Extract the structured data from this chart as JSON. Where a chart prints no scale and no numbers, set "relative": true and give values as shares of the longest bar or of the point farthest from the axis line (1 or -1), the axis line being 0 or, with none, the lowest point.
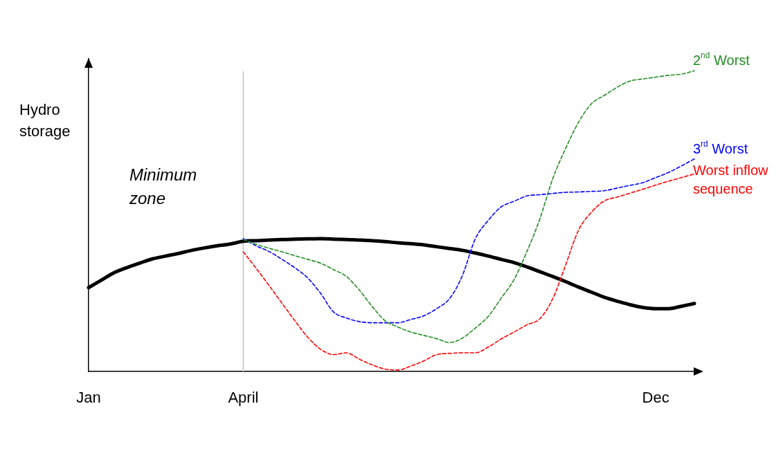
{
  "chart_data": {
    "type": "line",
    "relative": true,
    "ylabel": "Hydro storage",
    "annotations": [
      "Minimum zone"
    ],
    "categories": [
      "Jan",
      null,
      null,
      null,
      null,
      null,
      null,
      null,
      null,
      null,
      null,
      null,
      "April",
      null,
      null,
      null,
      null,
      null,
      null,
      null,
      null,
      null,
      null,
      null,
      null,
      null,
      null,
      null,
      null,
      null,
      null,
      null,
      null,
      null,
      null,
      null,
      null,
      null,
      null,
      null,
      null,
      null,
      null,
      null,
      "Dec",
      null,
      null,
      null
    ],
    "grid": false,
    "legend": false,
    "marker": "none",
    "ref_lines": [
      {
        "axis": "x",
        "value": "April",
        "color": "#c0c0c0"
      }
    ],
    "series": [
      {
        "color": "#000000",
        "line_style": "solid",
        "values": [
          0.279,
          0.304,
          0.329,
          0.346,
          0.361,
          0.375,
          0.384,
          0.393,
          0.403,
          0.411,
          0.418,
          0.424,
          0.433,
          0.435,
          0.437,
          0.439,
          0.44,
          0.441,
          0.442,
          0.44,
          0.439,
          0.437,
          0.435,
          0.432,
          0.428,
          0.425,
          0.421,
          0.415,
          0.409,
          0.403,
          0.394,
          0.384,
          0.373,
          0.362,
          0.348,
          0.332,
          0.316,
          0.299,
          0.281,
          0.264,
          0.247,
          0.234,
          0.222,
          0.213,
          0.209,
          0.209,
          0.217,
          0.226
        ]
      },
      {
        "name": "2$^{nd}$ Worst",
        "color": "#228b22",
        "line_style": "dashed",
        "values": [
          null,
          null,
          null,
          null,
          null,
          null,
          null,
          null,
          null,
          null,
          null,
          null,
          0.439,
          0.423,
          0.41,
          0.398,
          0.385,
          0.373,
          0.36,
          0.339,
          0.316,
          0.271,
          0.216,
          0.169,
          0.148,
          0.131,
          0.12,
          0.109,
          0.096,
          0.111,
          0.144,
          0.183,
          0.243,
          0.305,
          0.398,
          0.506,
          0.64,
          0.741,
          0.828,
          0.89,
          0.918,
          0.945,
          0.966,
          0.973,
          0.979,
          0.985,
          0.989,
          1
        ]
      },
      {
        "name": "3$^{rd}$ Worst",
        "color": "#0000ff",
        "line_style": "dashed",
        "values": [
          null,
          null,
          null,
          null,
          null,
          null,
          null,
          null,
          null,
          null,
          null,
          null,
          0.442,
          0.418,
          0.399,
          0.373,
          0.345,
          0.311,
          0.26,
          0.198,
          0.178,
          0.166,
          0.162,
          0.162,
          0.162,
          0.173,
          0.185,
          0.209,
          0.242,
          0.319,
          0.441,
          0.502,
          0.547,
          0.566,
          0.584,
          0.588,
          0.592,
          0.596,
          0.597,
          0.599,
          0.601,
          0.61,
          0.619,
          0.628,
          0.645,
          0.662,
          0.684,
          0.707
        ]
      },
      {
        "name": "Worst inflow sequence",
        "color": "#ff0000",
        "line_style": "dashed",
        "values": [
          null,
          null,
          null,
          null,
          null,
          null,
          null,
          null,
          null,
          null,
          null,
          null,
          0.398,
          0.343,
          0.286,
          0.227,
          0.169,
          0.114,
          0.074,
          0.056,
          0.062,
          0.041,
          0.022,
          0.008,
          0.005,
          0.018,
          0.035,
          0.056,
          0.06,
          0.062,
          0.062,
          0.081,
          0.108,
          0.131,
          0.155,
          0.175,
          0.241,
          0.353,
          0.469,
          0.529,
          0.567,
          0.58,
          0.593,
          0.606,
          0.62,
          0.633,
          0.645,
          0.657
        ]
      }
    ]
  }
}
